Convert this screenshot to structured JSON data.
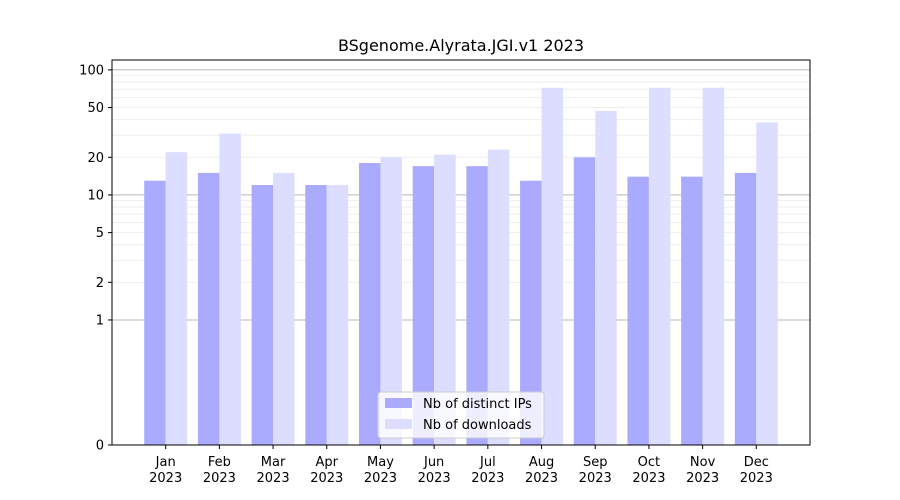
{
  "chart_data": {
    "type": "bar",
    "title": "BSgenome.Alyrata.JGI.v1 2023",
    "xlabel": "",
    "ylabel": "",
    "y_scale": "symlog",
    "ylim": [
      0,
      120
    ],
    "yticks": [
      "0",
      "1",
      "2",
      "5",
      "10",
      "20",
      "50",
      "100"
    ],
    "categories": [
      {
        "month": "Jan",
        "year": "2023"
      },
      {
        "month": "Feb",
        "year": "2023"
      },
      {
        "month": "Mar",
        "year": "2023"
      },
      {
        "month": "Apr",
        "year": "2023"
      },
      {
        "month": "May",
        "year": "2023"
      },
      {
        "month": "Jun",
        "year": "2023"
      },
      {
        "month": "Jul",
        "year": "2023"
      },
      {
        "month": "Aug",
        "year": "2023"
      },
      {
        "month": "Sep",
        "year": "2023"
      },
      {
        "month": "Oct",
        "year": "2023"
      },
      {
        "month": "Nov",
        "year": "2023"
      },
      {
        "month": "Dec",
        "year": "2023"
      }
    ],
    "series": [
      {
        "name": "Nb of distinct IPs",
        "color": "#aaaaff",
        "values": [
          13,
          15,
          12,
          12,
          18,
          17,
          17,
          13,
          20,
          14,
          14,
          15
        ]
      },
      {
        "name": "Nb of downloads",
        "color": "#ddddff",
        "values": [
          22,
          31,
          15,
          12,
          20,
          21,
          23,
          72,
          47,
          72,
          72,
          38
        ]
      }
    ],
    "grid": true,
    "legend_position": "bottom-center"
  }
}
